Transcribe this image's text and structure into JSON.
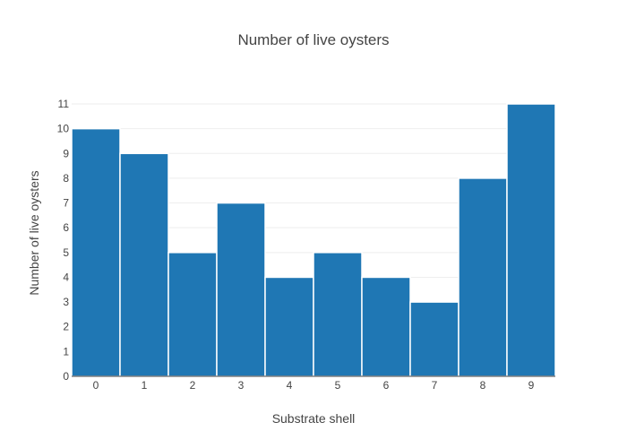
{
  "chart_data": {
    "type": "bar",
    "title": "Number of live oysters",
    "xlabel": "Substrate shell",
    "ylabel": "Number of live oysters",
    "categories": [
      "0",
      "1",
      "2",
      "3",
      "4",
      "5",
      "6",
      "7",
      "8",
      "9"
    ],
    "values": [
      10,
      9,
      5,
      7,
      4,
      5,
      4,
      3,
      8,
      11
    ],
    "ylim": [
      0,
      11
    ],
    "yticks": [
      "0",
      "1",
      "2",
      "3",
      "4",
      "5",
      "6",
      "7",
      "8",
      "9",
      "10",
      "11"
    ],
    "grid": true,
    "bar_color": "#1f77b4"
  }
}
